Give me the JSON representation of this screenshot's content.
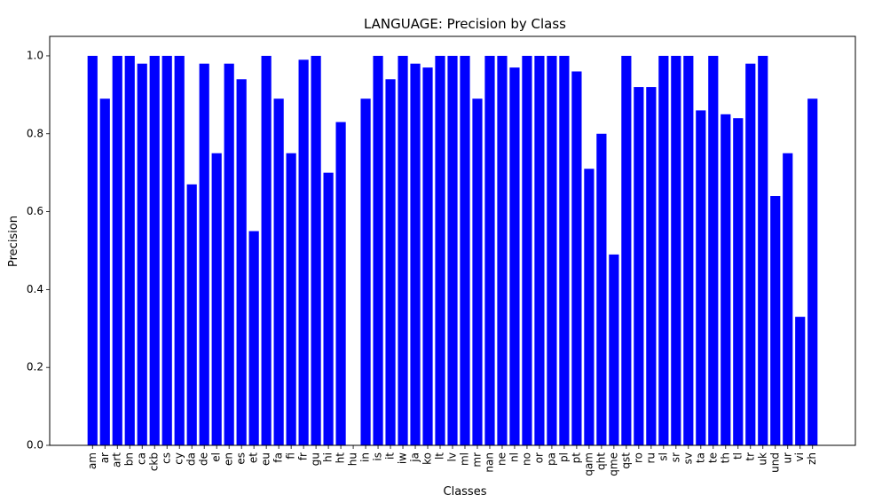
{
  "chart_data": {
    "type": "bar",
    "title": "LANGUAGE: Precision by Class",
    "xlabel": "Classes",
    "ylabel": "Precision",
    "ylim": [
      0,
      1.05
    ],
    "yticks": [
      "0.0",
      "0.2",
      "0.4",
      "0.6",
      "0.8",
      "1.0"
    ],
    "grid": false,
    "bar_color": "#0000ff",
    "categories": [
      "am",
      "ar",
      "art",
      "bn",
      "ca",
      "ckb",
      "cs",
      "cy",
      "da",
      "de",
      "el",
      "en",
      "es",
      "et",
      "eu",
      "fa",
      "fi",
      "fr",
      "gu",
      "hi",
      "ht",
      "hu",
      "in",
      "is",
      "it",
      "iw",
      "ja",
      "ko",
      "lt",
      "lv",
      "ml",
      "mr",
      "nan",
      "ne",
      "nl",
      "no",
      "or",
      "pa",
      "pl",
      "pt",
      "qam",
      "qht",
      "qme",
      "qst",
      "ro",
      "ru",
      "sl",
      "sr",
      "sv",
      "ta",
      "te",
      "th",
      "tl",
      "tr",
      "uk",
      "und",
      "ur",
      "vi",
      "zh"
    ],
    "values": [
      1.0,
      0.89,
      1.0,
      1.0,
      0.98,
      1.0,
      1.0,
      1.0,
      0.67,
      0.98,
      0.75,
      0.98,
      0.94,
      0.55,
      1.0,
      0.89,
      0.75,
      0.99,
      1.0,
      0.7,
      0.83,
      0.0,
      0.89,
      1.0,
      0.94,
      1.0,
      0.98,
      0.97,
      1.0,
      1.0,
      1.0,
      0.89,
      1.0,
      1.0,
      0.97,
      1.0,
      1.0,
      1.0,
      1.0,
      0.96,
      0.71,
      0.8,
      0.49,
      1.0,
      0.92,
      0.92,
      1.0,
      1.0,
      1.0,
      0.86,
      1.0,
      0.85,
      0.84,
      0.98,
      1.0,
      0.64,
      0.75,
      0.33,
      0.89
    ]
  }
}
